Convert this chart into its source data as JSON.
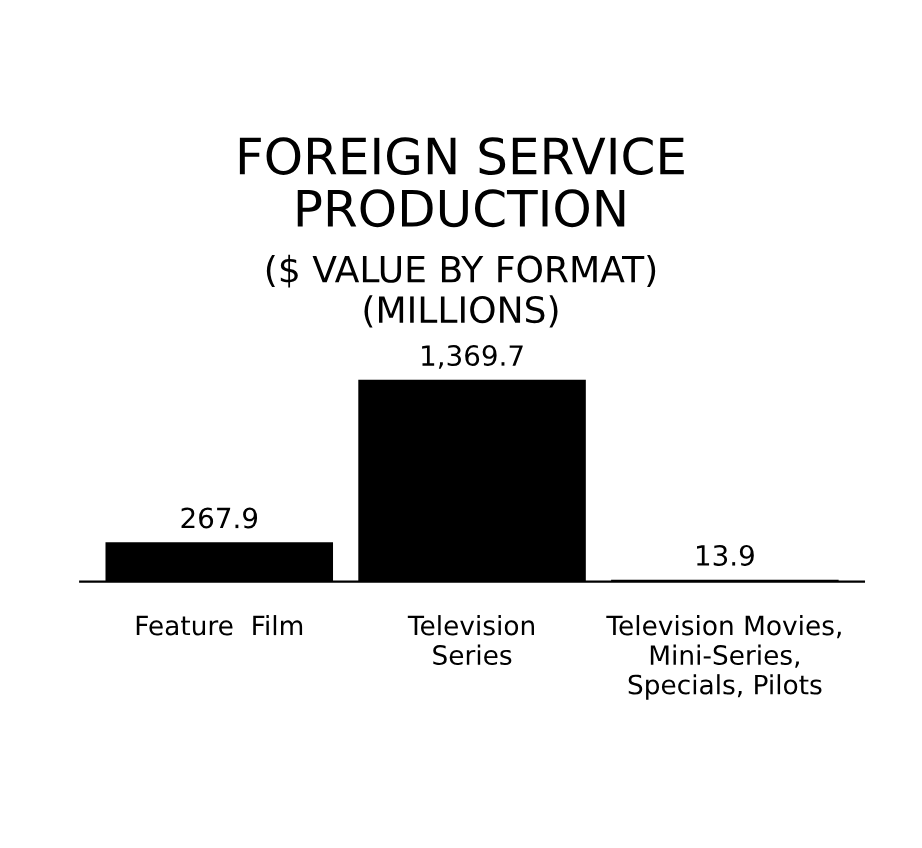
{
  "chart_data": {
    "type": "bar",
    "title": "FOREIGN SERVICE\nPRODUCTION",
    "subtitle": "($ VALUE BY FORMAT)\n(MILLIONS)",
    "categories": [
      "Feature  Film",
      "Television\nSeries",
      "Television Movies,\nMini-Series,\nSpecials, Pilots"
    ],
    "values": [
      267.9,
      1369.7,
      13.9
    ],
    "value_labels": [
      "267.9",
      "1,369.7",
      "13.9"
    ],
    "color": "#000000",
    "grid": false,
    "legend": false
  }
}
